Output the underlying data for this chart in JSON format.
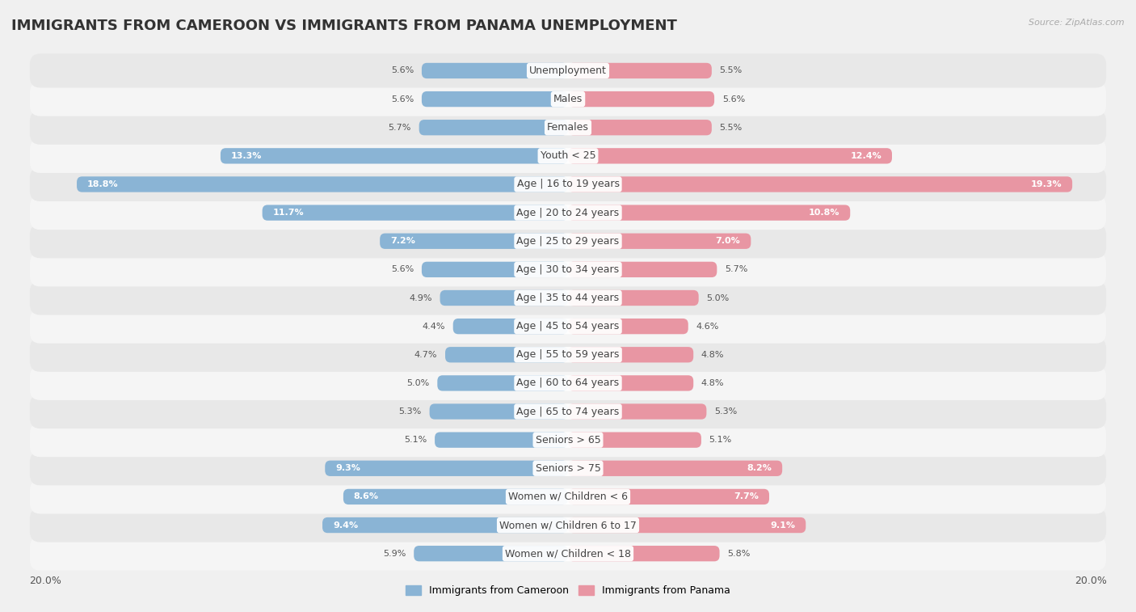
{
  "title": "IMMIGRANTS FROM CAMEROON VS IMMIGRANTS FROM PANAMA UNEMPLOYMENT",
  "source": "Source: ZipAtlas.com",
  "categories": [
    "Unemployment",
    "Males",
    "Females",
    "Youth < 25",
    "Age | 16 to 19 years",
    "Age | 20 to 24 years",
    "Age | 25 to 29 years",
    "Age | 30 to 34 years",
    "Age | 35 to 44 years",
    "Age | 45 to 54 years",
    "Age | 55 to 59 years",
    "Age | 60 to 64 years",
    "Age | 65 to 74 years",
    "Seniors > 65",
    "Seniors > 75",
    "Women w/ Children < 6",
    "Women w/ Children 6 to 17",
    "Women w/ Children < 18"
  ],
  "cameroon": [
    5.6,
    5.6,
    5.7,
    13.3,
    18.8,
    11.7,
    7.2,
    5.6,
    4.9,
    4.4,
    4.7,
    5.0,
    5.3,
    5.1,
    9.3,
    8.6,
    9.4,
    5.9
  ],
  "panama": [
    5.5,
    5.6,
    5.5,
    12.4,
    19.3,
    10.8,
    7.0,
    5.7,
    5.0,
    4.6,
    4.8,
    4.8,
    5.3,
    5.1,
    8.2,
    7.7,
    9.1,
    5.8
  ],
  "cameroon_color": "#8ab4d5",
  "panama_color": "#e896a3",
  "row_color_even": "#f5f5f5",
  "row_color_odd": "#e8e8e8",
  "background_color": "#f0f0f0",
  "axis_limit": 20.0,
  "legend_cameroon": "Immigrants from Cameroon",
  "legend_panama": "Immigrants from Panama",
  "title_fontsize": 13,
  "label_fontsize": 9,
  "value_fontsize": 8,
  "source_fontsize": 8
}
